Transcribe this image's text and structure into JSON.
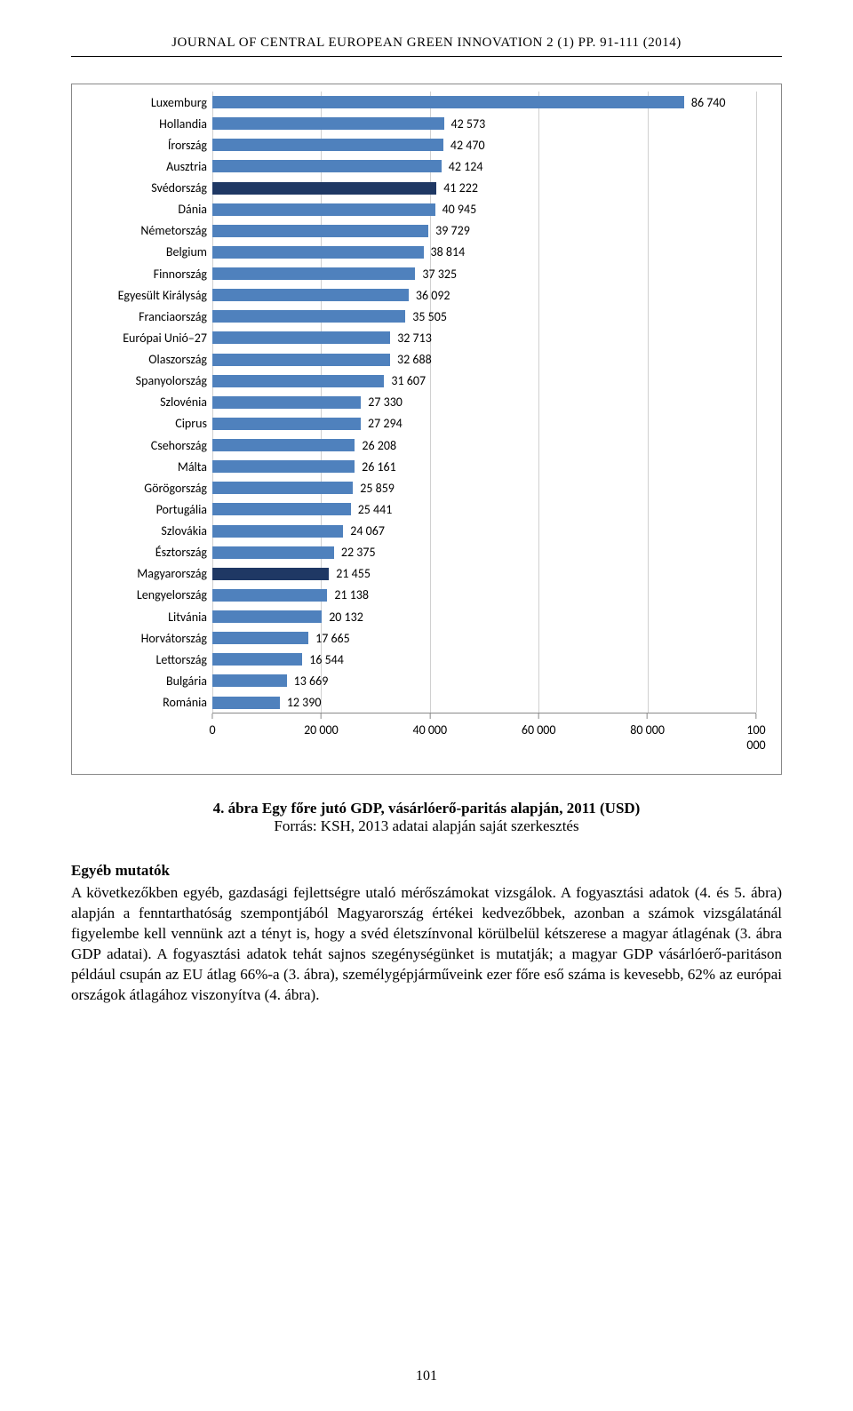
{
  "header": "JOURNAL OF CENTRAL EUROPEAN GREEN INNOVATION 2 (1) PP. 91-111 (2014)",
  "chart": {
    "type": "bar-horizontal",
    "xmin": 0,
    "xmax": 100000,
    "xtick_step": 20000,
    "xtick_labels": [
      "0",
      "20 000",
      "40 000",
      "60 000",
      "80 000",
      "100 000"
    ],
    "bar_default_color": "#4f81bd",
    "bar_highlight_color": "#1f3864",
    "font_size": 14,
    "bars": [
      {
        "label": "Luxemburg",
        "value": 86740,
        "display": "86 740",
        "highlight": false
      },
      {
        "label": "Hollandia",
        "value": 42573,
        "display": "42 573",
        "highlight": false
      },
      {
        "label": "Írország",
        "value": 42470,
        "display": "42 470",
        "highlight": false
      },
      {
        "label": "Ausztria",
        "value": 42124,
        "display": "42 124",
        "highlight": false
      },
      {
        "label": "Svédország",
        "value": 41222,
        "display": "41 222",
        "highlight": true
      },
      {
        "label": "Dánia",
        "value": 40945,
        "display": "40 945",
        "highlight": false
      },
      {
        "label": "Németország",
        "value": 39729,
        "display": "39 729",
        "highlight": false
      },
      {
        "label": "Belgium",
        "value": 38814,
        "display": "38 814",
        "highlight": false
      },
      {
        "label": "Finnország",
        "value": 37325,
        "display": "37 325",
        "highlight": false
      },
      {
        "label": "Egyesült Királyság",
        "value": 36092,
        "display": "36 092",
        "highlight": false
      },
      {
        "label": "Franciaország",
        "value": 35505,
        "display": "35 505",
        "highlight": false
      },
      {
        "label": "Európai Unió–27",
        "value": 32713,
        "display": "32 713",
        "highlight": false
      },
      {
        "label": "Olaszország",
        "value": 32688,
        "display": "32 688",
        "highlight": false
      },
      {
        "label": "Spanyolország",
        "value": 31607,
        "display": "31 607",
        "highlight": false
      },
      {
        "label": "Szlovénia",
        "value": 27330,
        "display": "27 330",
        "highlight": false
      },
      {
        "label": "Ciprus",
        "value": 27294,
        "display": "27 294",
        "highlight": false
      },
      {
        "label": "Csehország",
        "value": 26208,
        "display": "26 208",
        "highlight": false
      },
      {
        "label": "Málta",
        "value": 26161,
        "display": "26 161",
        "highlight": false
      },
      {
        "label": "Görögország",
        "value": 25859,
        "display": "25 859",
        "highlight": false
      },
      {
        "label": "Portugália",
        "value": 25441,
        "display": "25 441",
        "highlight": false
      },
      {
        "label": "Szlovákia",
        "value": 24067,
        "display": "24 067",
        "highlight": false
      },
      {
        "label": "Észtország",
        "value": 22375,
        "display": "22 375",
        "highlight": false
      },
      {
        "label": "Magyarország",
        "value": 21455,
        "display": "21 455",
        "highlight": true
      },
      {
        "label": "Lengyelország",
        "value": 21138,
        "display": "21 138",
        "highlight": false
      },
      {
        "label": "Litvánia",
        "value": 20132,
        "display": "20 132",
        "highlight": false
      },
      {
        "label": "Horvátország",
        "value": 17665,
        "display": "17 665",
        "highlight": false
      },
      {
        "label": "Lettország",
        "value": 16544,
        "display": "16 544",
        "highlight": false
      },
      {
        "label": "Bulgária",
        "value": 13669,
        "display": "13 669",
        "highlight": false
      },
      {
        "label": "Románia",
        "value": 12390,
        "display": "12 390",
        "highlight": false
      }
    ]
  },
  "caption": {
    "number": "4.",
    "title": " ábra Egy főre jutó GDP, vásárlóerő-paritás alapján, 2011 (USD)",
    "source": "Forrás:  KSH, 2013 adatai alapján saját szerkesztés"
  },
  "section_title": "Egyéb mutatók",
  "body": "A következőkben egyéb, gazdasági fejlettségre utaló mérőszámokat vizsgálok. A fogyasztási adatok (4. és 5. ábra) alapján a fenntarthatóság szempontjából Magyarország értékei kedvezőbbek, azonban a számok vizsgálatánál figyelembe kell vennünk azt a tényt is, hogy a svéd életszínvonal körülbelül kétszerese a magyar átlagénak (3. ábra GDP adatai). A fogyasztási adatok tehát sajnos szegénységünket is mutatják; a magyar GDP vásárlóerő-paritáson például csupán az EU átlag 66%-a (3. ábra), személygépjárműveink ezer főre eső száma is kevesebb, 62% az európai országok átlagához viszonyítva (4. ábra).",
  "page_number": "101"
}
